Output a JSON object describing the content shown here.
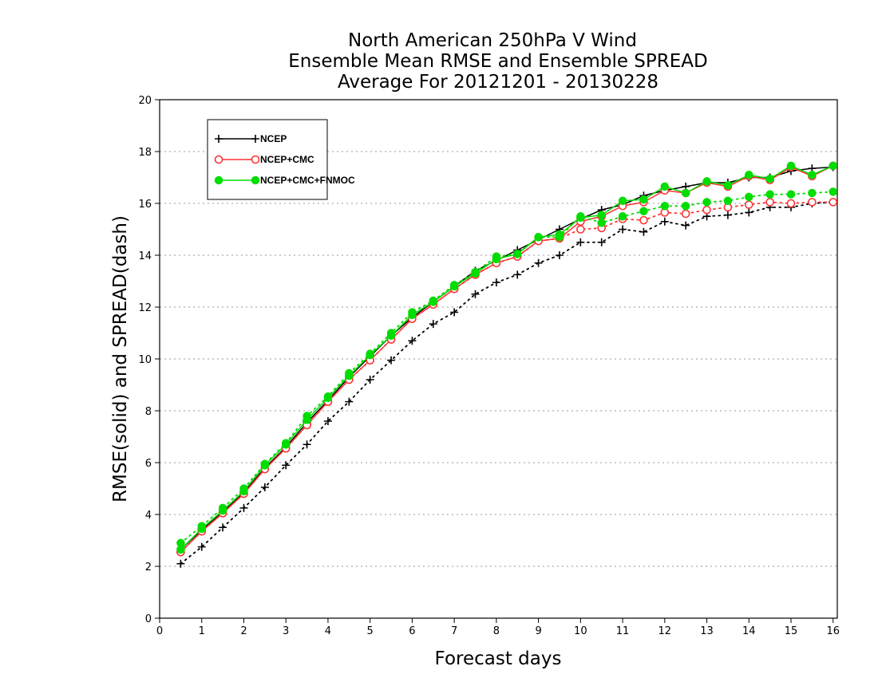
{
  "chart_data": {
    "type": "line",
    "title": [
      "North American 250hPa V Wind",
      "Ensemble Mean RMSE and Ensemble SPREAD",
      "Average For 20121201 - 20130228"
    ],
    "xlabel": "Forecast days",
    "ylabel": "RMSE(solid) and SPREAD(dash)",
    "xlim": [
      0,
      16.1
    ],
    "ylim": [
      0,
      20
    ],
    "xticks": [
      0,
      1,
      2,
      3,
      4,
      5,
      6,
      7,
      8,
      9,
      10,
      11,
      12,
      13,
      14,
      15,
      16
    ],
    "yticks": [
      0,
      2,
      4,
      6,
      8,
      10,
      12,
      14,
      16,
      18,
      20
    ],
    "grid": "dotted horizontal",
    "legend_position": "top-left",
    "x": [
      0.5,
      1,
      1.5,
      2,
      2.5,
      3,
      3.5,
      4,
      4.5,
      5,
      5.5,
      6,
      6.5,
      7,
      7.5,
      8,
      8.5,
      9,
      9.5,
      10,
      10.5,
      11,
      11.5,
      12,
      12.5,
      13,
      13.5,
      14,
      14.5,
      15,
      15.5,
      16
    ],
    "series": [
      {
        "name": "NCEP",
        "color": "#000000",
        "marker": "plus",
        "rmse": [
          2.65,
          3.4,
          4.1,
          4.85,
          5.8,
          6.6,
          7.55,
          8.4,
          9.3,
          10.1,
          10.9,
          11.6,
          12.2,
          12.8,
          13.4,
          13.8,
          14.2,
          14.6,
          15.0,
          15.4,
          15.75,
          15.95,
          16.3,
          16.5,
          16.65,
          16.8,
          16.8,
          17.0,
          17.0,
          17.25,
          17.35,
          17.4
        ],
        "spread": [
          2.1,
          2.75,
          3.5,
          4.25,
          5.05,
          5.9,
          6.7,
          7.6,
          8.35,
          9.2,
          9.95,
          10.7,
          11.35,
          11.8,
          12.5,
          12.95,
          13.25,
          13.7,
          14.0,
          14.5,
          14.5,
          15.0,
          14.9,
          15.3,
          15.15,
          15.5,
          15.55,
          15.65,
          15.85,
          15.85,
          16.0,
          16.05
        ]
      },
      {
        "name": "NCEP+CMC",
        "color": "#ff3333",
        "marker": "circle",
        "rmse": [
          2.55,
          3.35,
          4.05,
          4.8,
          5.75,
          6.55,
          7.45,
          8.35,
          9.2,
          9.95,
          10.75,
          11.55,
          12.1,
          12.7,
          13.25,
          13.7,
          13.95,
          14.55,
          14.65,
          15.3,
          15.5,
          15.9,
          16.05,
          16.5,
          16.4,
          16.8,
          16.65,
          17.05,
          16.9,
          17.4,
          17.05,
          17.45
        ],
        "spread": [
          2.55,
          3.35,
          4.05,
          4.8,
          5.75,
          6.55,
          7.45,
          8.35,
          9.2,
          9.95,
          10.75,
          11.55,
          12.1,
          12.7,
          13.25,
          13.7,
          13.95,
          14.55,
          14.65,
          15.0,
          15.05,
          15.4,
          15.35,
          15.65,
          15.6,
          15.75,
          15.85,
          15.95,
          16.05,
          16.0,
          16.05,
          16.05
        ]
      },
      {
        "name": "NCEP+CMC+FNMOC",
        "color": "#00dd00",
        "marker": "dot",
        "rmse": [
          2.65,
          3.45,
          4.15,
          4.9,
          5.9,
          6.7,
          7.65,
          8.5,
          9.35,
          10.15,
          10.9,
          11.7,
          12.2,
          12.8,
          13.3,
          13.85,
          14.05,
          14.7,
          14.8,
          15.45,
          15.55,
          16.1,
          16.15,
          16.65,
          16.4,
          16.85,
          16.7,
          17.1,
          16.95,
          17.45,
          17.1,
          17.45
        ],
        "spread": [
          2.9,
          3.55,
          4.25,
          5.0,
          5.95,
          6.75,
          7.8,
          8.55,
          9.45,
          10.2,
          11.0,
          11.8,
          12.25,
          12.85,
          13.35,
          13.95,
          14.05,
          14.7,
          14.7,
          15.5,
          15.25,
          15.5,
          15.7,
          15.9,
          15.9,
          16.05,
          16.1,
          16.25,
          16.35,
          16.35,
          16.4,
          16.45
        ]
      }
    ]
  }
}
